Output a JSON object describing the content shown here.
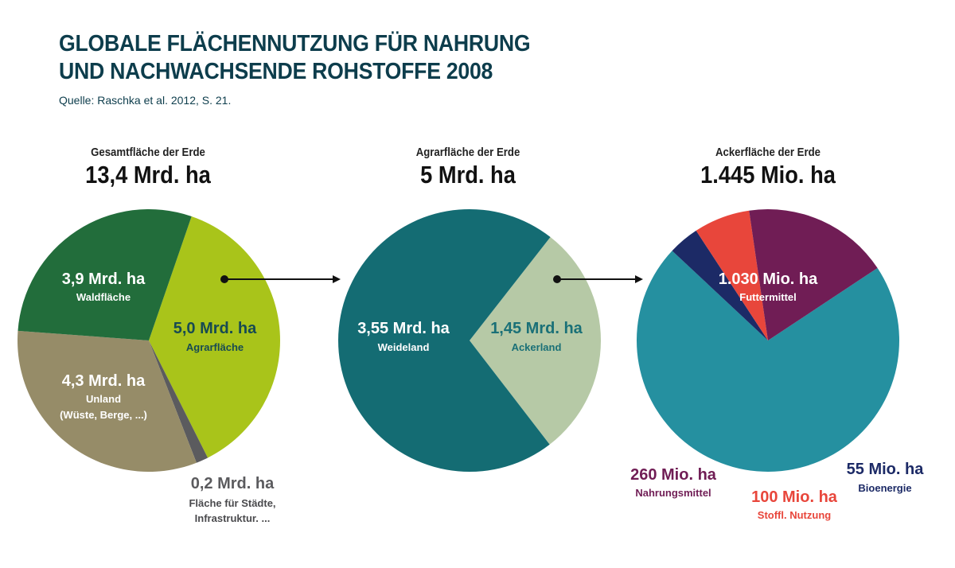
{
  "title_lines": [
    "GLOBALE FLÄCHENNUTZUNG FÜR NAHRUNG",
    "UND NACHWACHSENDE ROHSTOFFE 2008"
  ],
  "source": "Quelle: Raschka et al. 2012, S. 21.",
  "chart_data": [
    {
      "type": "pie",
      "subtitle": "Gesamtfläche der Erde",
      "total": "13,4 Mrd. ha",
      "slices": [
        {
          "value": 5.0,
          "value_label": "5,0 Mrd. ha",
          "label": "Agrarfläche",
          "color": "#a9c41a"
        },
        {
          "value": 0.2,
          "value_label": "0,2 Mrd. ha",
          "label": "Fläche für Städte,",
          "label2": "Infrastruktur. ...",
          "color": "#5b5b5e"
        },
        {
          "value": 4.3,
          "value_label": "4,3 Mrd. ha",
          "label": "Unland",
          "label2": "(Wüste, Berge, ...)",
          "color": "#968c68"
        },
        {
          "value": 3.9,
          "value_label": "3,9 Mrd. ha",
          "label": "Waldfläche",
          "color": "#226d3b"
        }
      ]
    },
    {
      "type": "pie",
      "subtitle": "Agrarfläche der Erde",
      "total": "5 Mrd. ha",
      "slices": [
        {
          "value": 1.45,
          "value_label": "1,45 Mrd. ha",
          "label": "Ackerland",
          "color": "#b6c9a6"
        },
        {
          "value": 3.55,
          "value_label": "3,55 Mrd. ha",
          "label": "Weideland",
          "color": "#146c73"
        }
      ]
    },
    {
      "type": "pie",
      "subtitle": "Ackerfläche der Erde",
      "total": "1.445 Mio. ha",
      "slices": [
        {
          "value": 1030,
          "value_label": "1.030 Mio. ha",
          "label": "Futtermittel",
          "color": "#2590a0"
        },
        {
          "value": 55,
          "value_label": "55 Mio. ha",
          "label": "Bioenergie",
          "color": "#1c2a66"
        },
        {
          "value": 100,
          "value_label": "100 Mio. ha",
          "label": "Stoffl. Nutzung",
          "color": "#e8463b"
        },
        {
          "value": 260,
          "value_label": "260 Mio. ha",
          "label": "Nahrungsmittel",
          "color": "#701d55"
        }
      ]
    }
  ]
}
